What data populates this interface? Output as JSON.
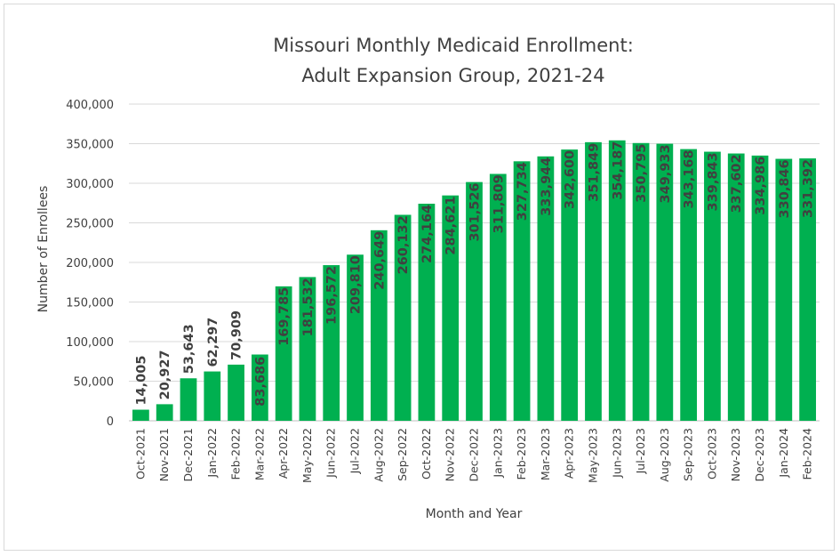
{
  "chart_data": {
    "type": "bar",
    "title_line1": "Missouri Monthly Medicaid Enrollment:",
    "title_line2": "Adult Expansion Group, 2021-24",
    "xlabel": "Month and Year",
    "ylabel": "Number of Enrollees",
    "ylim": [
      0,
      400000
    ],
    "yticks": [
      0,
      50000,
      100000,
      150000,
      200000,
      250000,
      300000,
      350000,
      400000
    ],
    "ytick_labels": [
      "0",
      "50,000",
      "100,000",
      "150,000",
      "200,000",
      "250,000",
      "300,000",
      "350,000",
      "400,000"
    ],
    "grid": true,
    "bar_color": "#00b050",
    "categories": [
      "Oct-2021",
      "Nov-2021",
      "Dec-2021",
      "Jan-2022",
      "Feb-2022",
      "Mar-2022",
      "Apr-2022",
      "May-2022",
      "Jun-2022",
      "Jul-2022",
      "Aug-2022",
      "Sep-2022",
      "Oct-2022",
      "Nov-2022",
      "Dec-2022",
      "Jan-2023",
      "Feb-2023",
      "Mar-2023",
      "Apr-2023",
      "May-2023",
      "Jun-2023",
      "Jul-2023",
      "Aug-2023",
      "Sep-2023",
      "Oct-2023",
      "Nov-2023",
      "Dec-2023",
      "Jan-2024",
      "Feb-2024"
    ],
    "values": [
      14005,
      20927,
      53643,
      62297,
      70909,
      83686,
      169785,
      181532,
      196572,
      209810,
      240649,
      260132,
      274164,
      284621,
      301526,
      311809,
      327734,
      333944,
      342600,
      351849,
      354187,
      350795,
      349933,
      343168,
      339843,
      337602,
      334986,
      330846,
      331392
    ],
    "value_labels": [
      "14,005",
      "20,927",
      "53,643",
      "62,297",
      "70,909",
      "83,686",
      "169,785",
      "181,532",
      "196,572",
      "209,810",
      "240,649",
      "260,132",
      "274,164",
      "284,621",
      "301,526",
      "311,809",
      "327,734",
      "333,944",
      "342,600",
      "351,849",
      "354,187",
      "350,795",
      "349,933",
      "343,168",
      "339,843",
      "337,602",
      "334,986",
      "330,846",
      "331,392"
    ]
  }
}
